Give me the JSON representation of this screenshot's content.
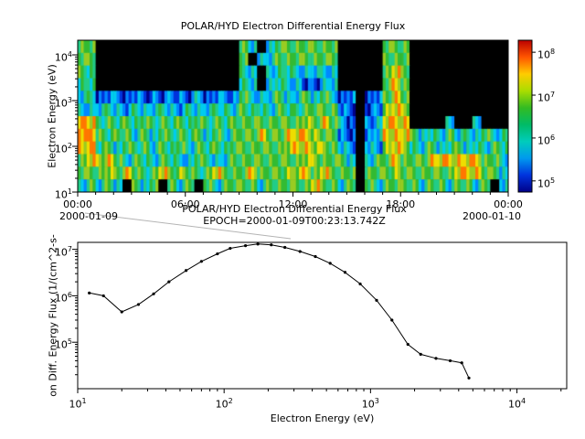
{
  "chart_data": [
    {
      "type": "heatmap",
      "title": "POLAR/HYD  Electron Differential Energy Flux",
      "ylabel": "Electron Energy (eV)",
      "x_tick_labels": [
        "00:00",
        "06:00",
        "12:00",
        "18:00",
        "00:00"
      ],
      "x_date_labels": [
        "2000-01-09",
        "2000-01-10"
      ],
      "time_hours": [
        0,
        6,
        12,
        18,
        24
      ],
      "y_tick_exponents": [
        1,
        2,
        3,
        4
      ],
      "ylim_log": [
        1,
        4.32
      ],
      "colorbar": {
        "tick_exponents": [
          5,
          6,
          7,
          8
        ],
        "range_log": [
          4.74,
          8.28
        ],
        "gradient_top_to_bottom": [
          "#bb0000",
          "#ff5500",
          "#ffcc00",
          "#aadd00",
          "#33bb22",
          "#00bb66",
          "#00ccbb",
          "#0099ee",
          "#0033dd",
          "#000088"
        ],
        "colormap_levels": [
          "#000000",
          "#000088",
          "#0033dd",
          "#0088ff",
          "#00ccee",
          "#22cc88",
          "#33bb33",
          "#99cc22",
          "#eedd00",
          "#ff7700"
        ]
      },
      "flux_levels_note": "levels 0-9 index colormap_levels (0=below threshold/black); 12 rows top(10^4 eV) to bottom(10^1 eV); 48 half-hour columns 00:00 to 24:00",
      "flux_level_rows": [
        "660000000000000000640466666660000066600000000000",
        "660000000000000000604466666660000066600000000000",
        "650000000000000000540455444440000068600000000000",
        "550000000000000000540454422440000068600000000000",
        "452332323233242333644464464642302368600000000000",
        "444543544543544554655465566663202378700000000000",
        "985656565656565656666666676864203488800004004000",
        "996566464656564646668668887663203488864546454645",
        "895646564656465656666667887764304378754645645465",
        "687864654654465446666666677666404668666888888664",
        "666768656867656866686667786866606667666666888664",
        "464640646064606466664666668664606466664664664604"
      ]
    },
    {
      "type": "line",
      "title": "POLAR/HYD  Electron Differential Energy Flux",
      "subtitle": "EPOCH=2000-01-09T00:23:13.742Z",
      "xlabel": "Electron Energy (eV)",
      "ylabel": "on Diff. Energy Flux (1/(cm^2-s-",
      "x_tick_exponents": [
        1,
        2,
        3,
        4
      ],
      "y_tick_exponents": [
        5,
        6,
        7
      ],
      "xlim_log": [
        1,
        4.34
      ],
      "ylim_log": [
        4.0,
        7.15
      ],
      "points_x_eV_y_flux": [
        [
          12,
          1150000
        ],
        [
          15,
          1000000
        ],
        [
          20,
          450000
        ],
        [
          26,
          650000
        ],
        [
          33,
          1100000
        ],
        [
          42,
          2000000
        ],
        [
          55,
          3500000
        ],
        [
          70,
          5500000
        ],
        [
          90,
          8000000
        ],
        [
          110,
          10500000
        ],
        [
          140,
          12000000
        ],
        [
          170,
          13000000
        ],
        [
          210,
          12500000
        ],
        [
          260,
          11000000
        ],
        [
          330,
          9000000
        ],
        [
          420,
          7000000
        ],
        [
          530,
          5000000
        ],
        [
          670,
          3200000
        ],
        [
          850,
          1800000
        ],
        [
          1100,
          800000
        ],
        [
          1400,
          300000
        ],
        [
          1800,
          90000
        ],
        [
          2200,
          55000
        ],
        [
          2800,
          45000
        ],
        [
          3500,
          40000
        ],
        [
          4200,
          36000
        ],
        [
          4700,
          17000
        ]
      ]
    }
  ]
}
